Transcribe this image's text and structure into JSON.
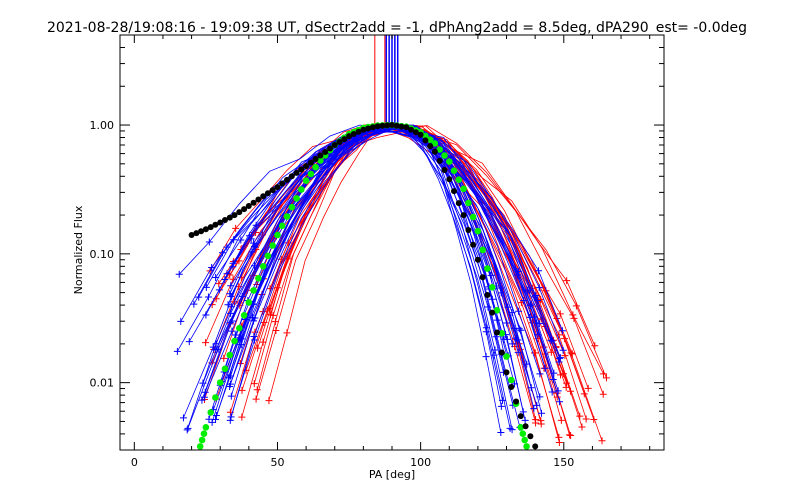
{
  "chart_data": {
    "type": "line",
    "title": "2021-08-28/19:08:16 - 19:09:38 UT, dSectr2add = -1, dPhAng2add = 8.5deg, dPA290_est= -0.0deg",
    "xlabel": "PA [deg]",
    "ylabel": "Normalized Flux",
    "xlim": [
      -5,
      185
    ],
    "ylim": [
      0.003,
      5
    ],
    "yscale": "log",
    "grid": false,
    "legend": "none",
    "x_ticks": [
      0,
      50,
      100,
      150
    ],
    "x_tick_labels": [
      "0",
      "50",
      "100",
      "150"
    ],
    "y_ticks": [
      0.01,
      0.1,
      1.0
    ],
    "y_tick_labels": [
      "0.01",
      "0.10",
      "1.00"
    ],
    "vertical_lines": {
      "red": [
        84,
        87.5,
        91
      ],
      "blue": [
        88,
        89,
        90,
        91,
        92
      ]
    },
    "series": [
      {
        "name": "black-points",
        "color": "#000000",
        "style": "filled-circles",
        "x": [
          20,
          25,
          30,
          35,
          40,
          45,
          50,
          55,
          60,
          65,
          70,
          75,
          80,
          85,
          90,
          95,
          100,
          105,
          110,
          115,
          120,
          125,
          130,
          135,
          140
        ],
        "y": [
          0.14,
          0.155,
          0.175,
          0.2,
          0.235,
          0.28,
          0.33,
          0.4,
          0.48,
          0.58,
          0.7,
          0.82,
          0.92,
          0.98,
          1.0,
          0.96,
          0.84,
          0.62,
          0.38,
          0.2,
          0.09,
          0.035,
          0.012,
          0.0055,
          0.0032
        ]
      },
      {
        "name": "green-points",
        "color": "#00ee00",
        "style": "filled-circles",
        "x": [
          23,
          25,
          30,
          35,
          40,
          45,
          50,
          55,
          60,
          65,
          70,
          75,
          80,
          85,
          90,
          95,
          100,
          105,
          110,
          115,
          120,
          125,
          130,
          135,
          137
        ],
        "y": [
          0.0032,
          0.0045,
          0.01,
          0.021,
          0.042,
          0.08,
          0.14,
          0.23,
          0.37,
          0.53,
          0.7,
          0.85,
          0.95,
          0.99,
          1.0,
          0.97,
          0.88,
          0.72,
          0.52,
          0.32,
          0.15,
          0.055,
          0.016,
          0.0045,
          0.0032
        ]
      },
      {
        "name": "blue-lines",
        "color": "#0000ff",
        "style": "line-with-plus",
        "count": 40,
        "x_start_range": [
          15,
          35
        ],
        "peak_x_range": [
          89,
          93
        ],
        "x_end_range": [
          128,
          152
        ],
        "start_y_range": [
          0.004,
          0.09
        ],
        "end_y_range": [
          0.004,
          0.03
        ]
      },
      {
        "name": "red-lines",
        "color": "#ff0000",
        "style": "line-with-plus",
        "count": 32,
        "x_start_range": [
          22,
          48
        ],
        "peak_x_range": [
          87,
          94
        ],
        "x_end_range": [
          140,
          165
        ],
        "start_y_range": [
          0.005,
          0.1
        ],
        "end_y_range": [
          0.003,
          0.02
        ]
      }
    ]
  }
}
